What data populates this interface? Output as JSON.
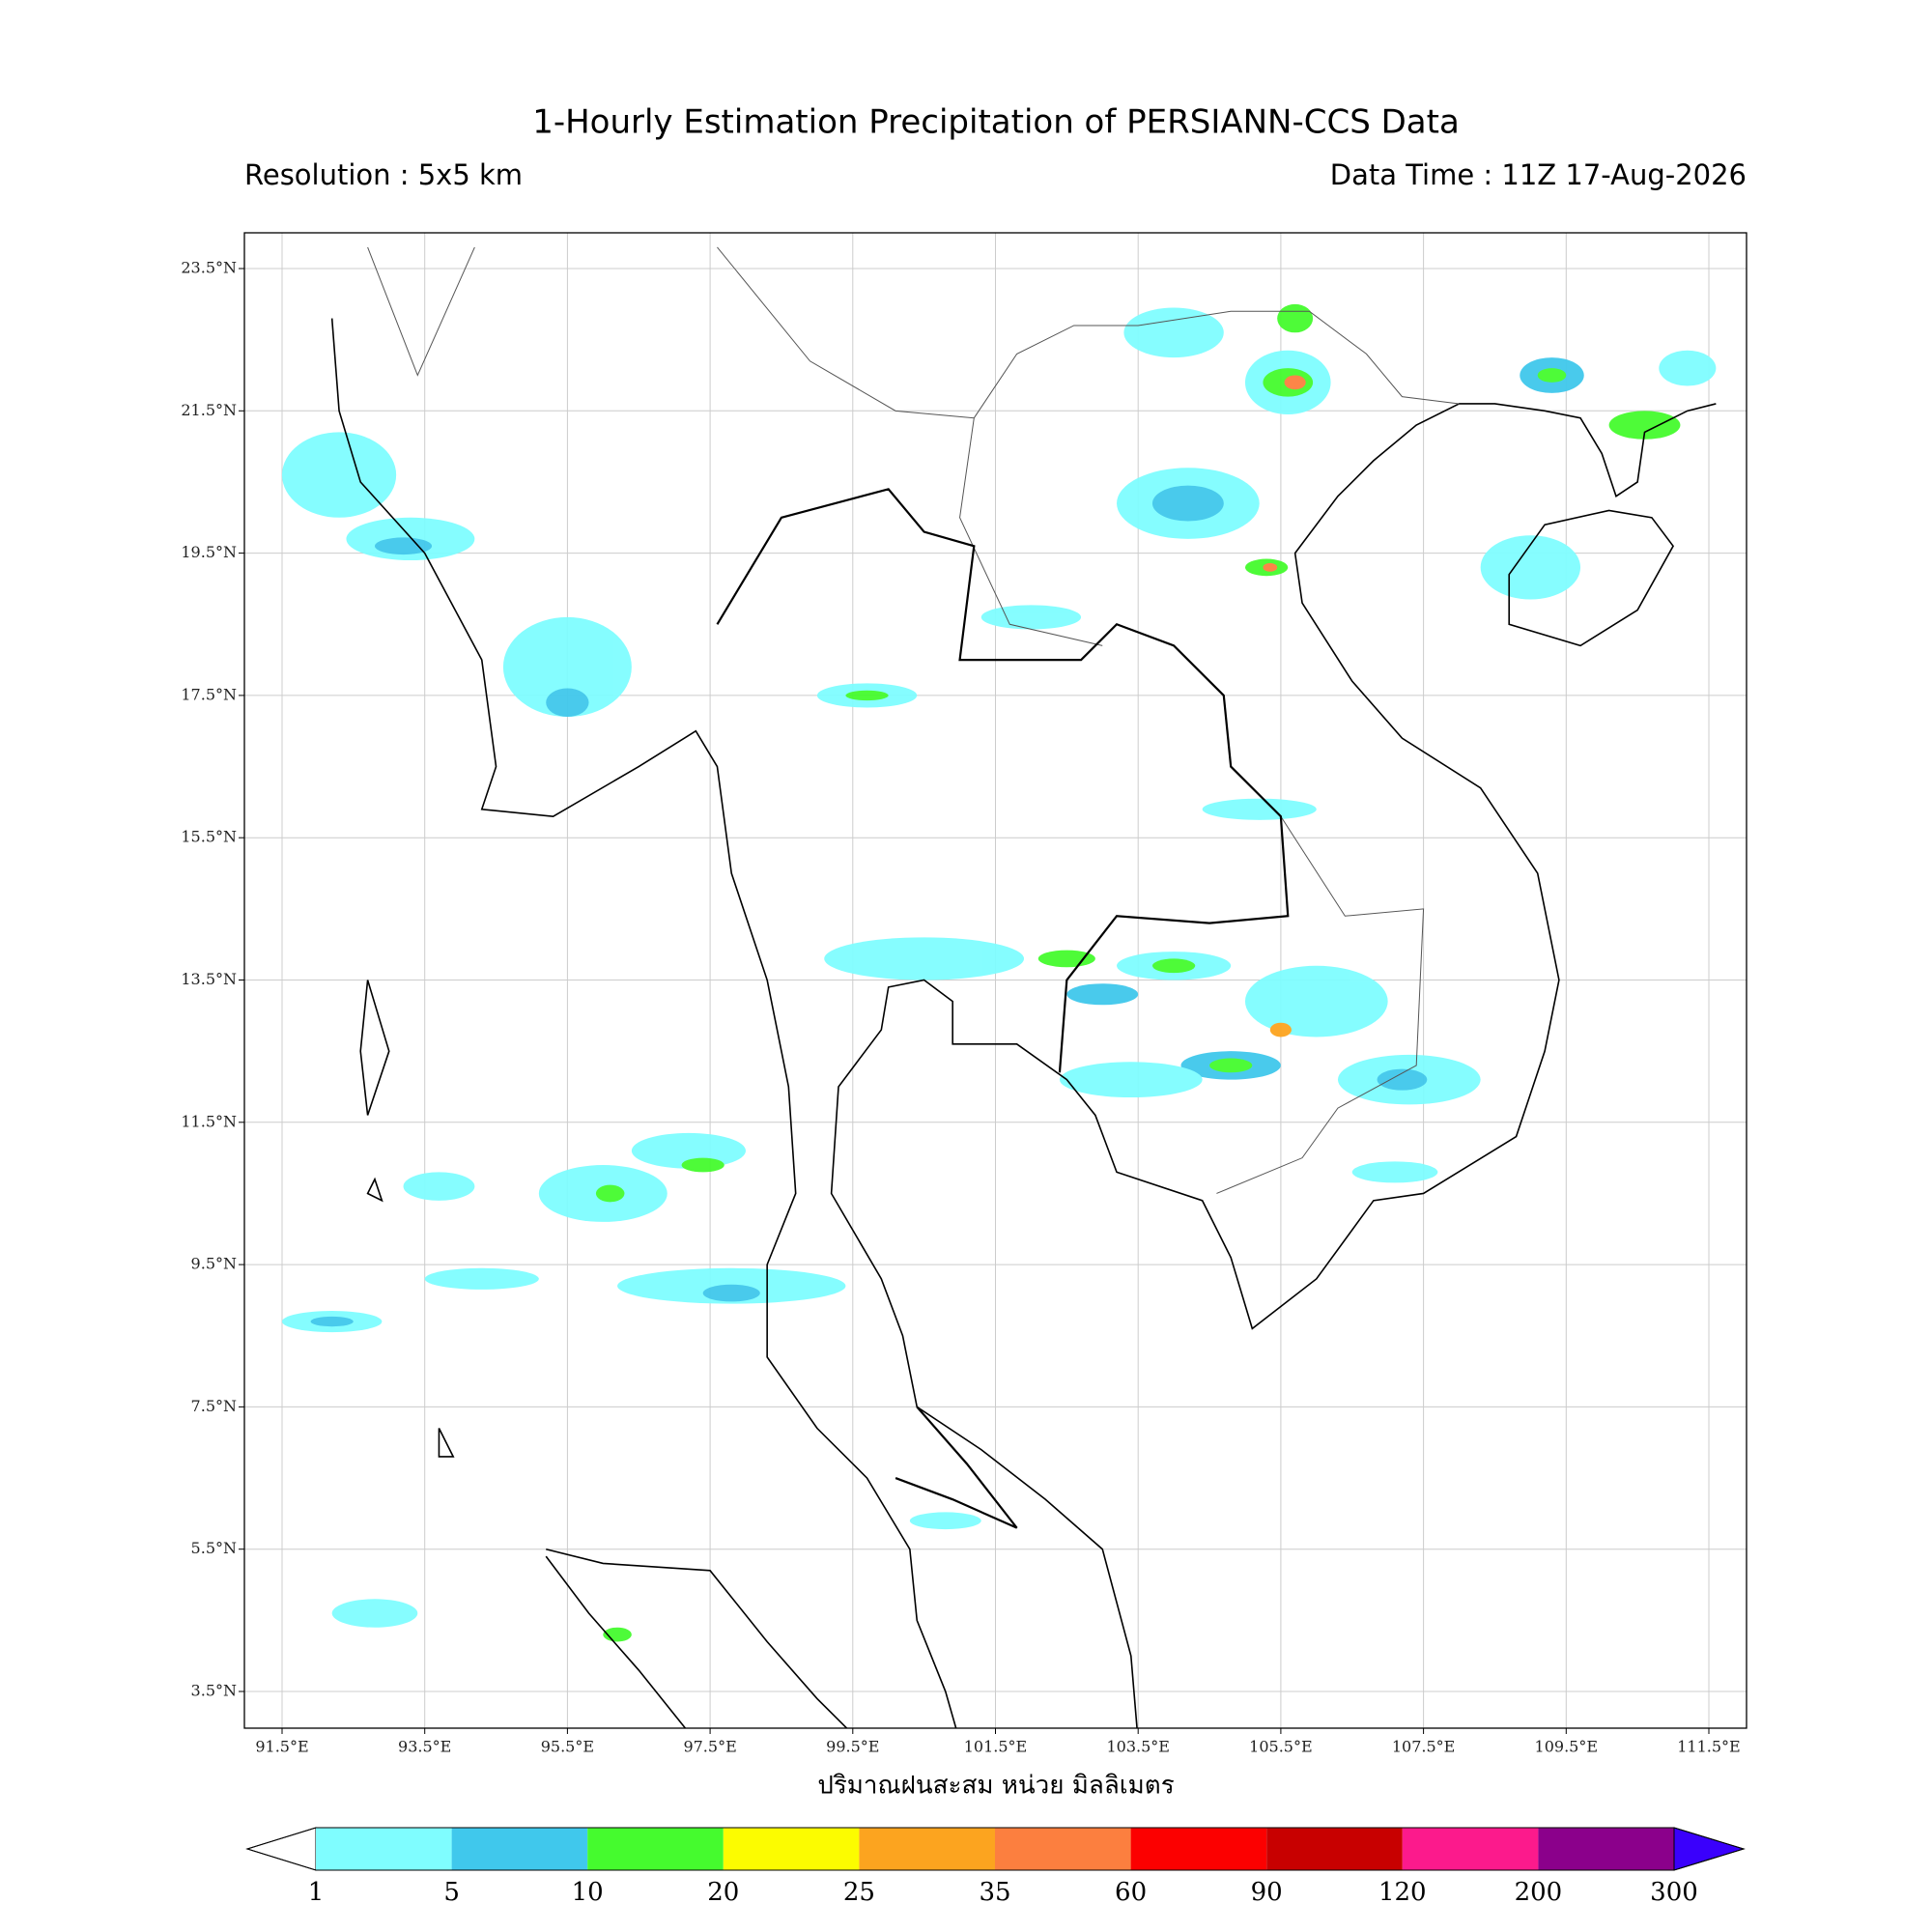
{
  "map": {
    "title": "1-Hourly Estimation Precipitation of PERSIANN-CCS Data",
    "subtitle_left": "Resolution : 5x5 km",
    "subtitle_right": "Data Time : 11Z 17-Aug-2026",
    "lon_ticks": [
      "91.5°E",
      "93.5°E",
      "95.5°E",
      "97.5°E",
      "99.5°E",
      "101.5°E",
      "103.5°E",
      "105.5°E",
      "107.5°E",
      "109.5°E",
      "111.5°E"
    ],
    "lat_ticks": [
      "23.5°N",
      "21.5°N",
      "19.5°N",
      "17.5°N",
      "15.5°N",
      "13.5°N",
      "11.5°N",
      "9.5°N",
      "7.5°N",
      "5.5°N",
      "3.5°N"
    ],
    "xlabel": "ปริมาณฝนสะสม หน่วย มิลลิเมตร",
    "colorbar": {
      "labels": [
        1,
        5,
        10,
        20,
        25,
        35,
        60,
        90,
        120,
        200,
        300
      ],
      "colors": [
        "#7ffdff",
        "#40c8ec",
        "#45fb2e",
        "#fcfc00",
        "#fca41f",
        "#fc7f3f",
        "#fc0000",
        "#c80000",
        "#fc1a8c",
        "#8b008b",
        "#3a00fc"
      ]
    }
  }
}
